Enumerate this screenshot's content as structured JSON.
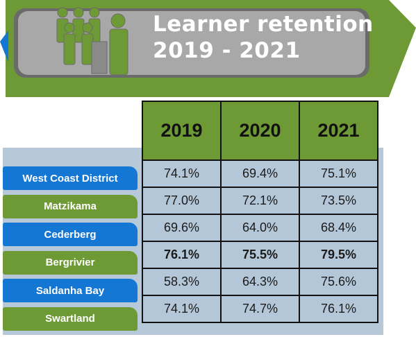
{
  "header": {
    "title_line1": "Learner retention",
    "title_line2": "2019 - 2021"
  },
  "colors": {
    "green": "#6e9a35",
    "blue": "#1477d4",
    "panel": "#b7c9d8"
  },
  "chart_data": {
    "type": "table",
    "columns": [
      "2019",
      "2020",
      "2021"
    ],
    "rows": [
      {
        "name": "West Coast District",
        "values": [
          "74.1%",
          "69.4%",
          "75.1%"
        ],
        "bold": false,
        "style": "blue"
      },
      {
        "name": "Matzikama",
        "values": [
          "77.0%",
          "72.1%",
          "73.5%"
        ],
        "bold": false,
        "style": "green"
      },
      {
        "name": "Cederberg",
        "values": [
          "69.6%",
          "64.0%",
          "68.4%"
        ],
        "bold": false,
        "style": "blue"
      },
      {
        "name": "Bergrivier",
        "values": [
          "76.1%",
          "75.5%",
          "79.5%"
        ],
        "bold": true,
        "style": "green"
      },
      {
        "name": "Saldanha Bay",
        "values": [
          "58.3%",
          "64.3%",
          "75.6%"
        ],
        "bold": false,
        "style": "blue"
      },
      {
        "name": "Swartland",
        "values": [
          "74.1%",
          "74.7%",
          "76.1%"
        ],
        "bold": false,
        "style": "green"
      }
    ]
  }
}
